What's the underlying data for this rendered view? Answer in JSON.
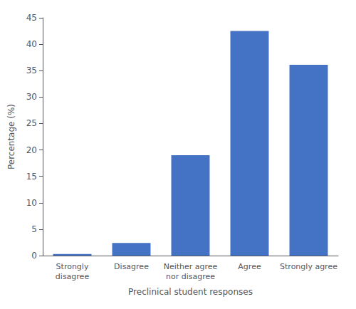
{
  "chart_data": {
    "type": "bar",
    "categories": [
      "Strongly\ndisagree",
      "Disagree",
      "Neither agree\nnor disagree",
      "Agree",
      "Strongly agree"
    ],
    "values": [
      0.3,
      2.4,
      19.0,
      42.5,
      36.1
    ],
    "color": "#4472C4",
    "xlabel": "Preclinical student responses",
    "ylabel": "Percentage (%)",
    "ylim": [
      0,
      45
    ],
    "yticks": [
      0,
      5,
      10,
      15,
      20,
      25,
      30,
      35,
      40,
      45
    ],
    "grid": false
  }
}
